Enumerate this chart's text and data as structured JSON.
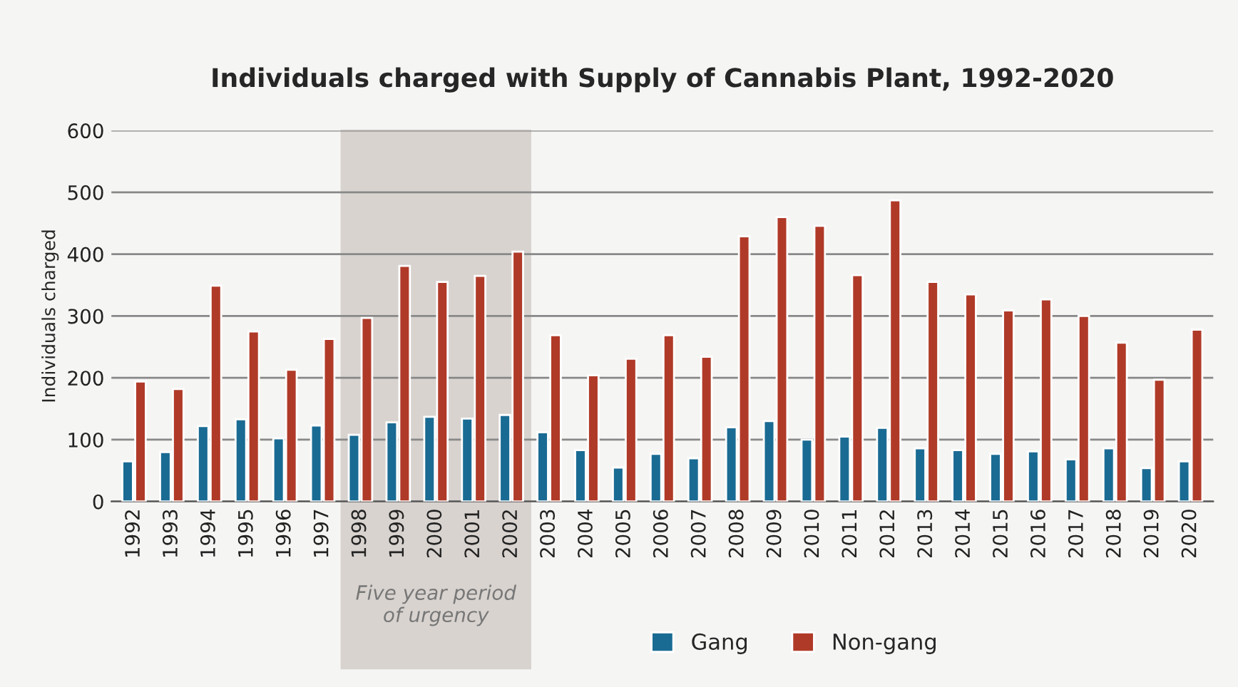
{
  "chart_data": {
    "type": "bar",
    "title": "Individuals charged with Supply of Cannabis Plant, 1992-2020",
    "ylabel": "Individuals charged",
    "categories": [
      "1992",
      "1993",
      "1994",
      "1995",
      "1996",
      "1997",
      "1998",
      "1999",
      "2000",
      "2001",
      "2002",
      "2003",
      "2004",
      "2005",
      "2006",
      "2007",
      "2008",
      "2009",
      "2010",
      "2011",
      "2012",
      "2013",
      "2014",
      "2015",
      "2016",
      "2017",
      "2018",
      "2019",
      "2020"
    ],
    "series": [
      {
        "name": "Gang",
        "color": "#1a6b93",
        "values": [
          65,
          80,
          122,
          133,
          102,
          123,
          108,
          128,
          137,
          134,
          140,
          112,
          83,
          55,
          77,
          70,
          120,
          130,
          100,
          105,
          119,
          86,
          83,
          77,
          81,
          68,
          86,
          54,
          65
        ]
      },
      {
        "name": "Non-gang",
        "color": "#b03a28",
        "values": [
          194,
          182,
          349,
          275,
          213,
          263,
          297,
          381,
          355,
          365,
          404,
          269,
          204,
          231,
          269,
          234,
          429,
          460,
          446,
          366,
          487,
          355,
          335,
          309,
          327,
          300,
          257,
          197,
          278
        ]
      }
    ],
    "ylim": [
      0,
      600
    ],
    "yticks": [
      0,
      100,
      200,
      300,
      400,
      500,
      600
    ],
    "grid": "y",
    "legend": "bottom",
    "bands": [
      {
        "axis": "x",
        "from": "1998",
        "to": "2002",
        "label": "Five year period\nof urgency",
        "color": "#d8d3cf"
      }
    ]
  }
}
